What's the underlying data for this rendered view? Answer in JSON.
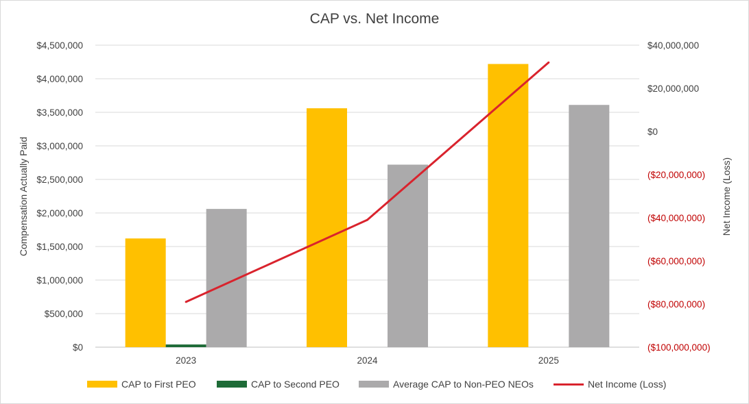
{
  "chart_data": {
    "type": "bar",
    "title": "CAP vs. Net Income",
    "categories": [
      "2023",
      "2024",
      "2025"
    ],
    "series": [
      {
        "name": "CAP to First PEO",
        "values": [
          1620000,
          3560000,
          4220000
        ],
        "color": "#FFC000",
        "axis": "left"
      },
      {
        "name": "CAP to Second PEO",
        "values": [
          40000,
          0,
          0
        ],
        "color": "#1E6B37",
        "axis": "left"
      },
      {
        "name": "Average CAP to Non-PEO NEOs",
        "values": [
          2060000,
          2720000,
          3610000
        ],
        "color": "#ABAAAB",
        "axis": "left"
      }
    ],
    "line_series": {
      "name": "Net Income (Loss)",
      "values": [
        -79000000,
        -41000000,
        32000000
      ],
      "color": "#D9232D",
      "axis": "right"
    },
    "ylabel": "Compensation Actually Paid",
    "y2label": "Net Income (Loss)",
    "ylim": [
      0,
      4500000
    ],
    "y2lim": [
      -100000000,
      40000000
    ],
    "yticks": [
      {
        "v": 0,
        "label": "$0"
      },
      {
        "v": 500000,
        "label": "$500,000"
      },
      {
        "v": 1000000,
        "label": "$1,000,000"
      },
      {
        "v": 1500000,
        "label": "$1,500,000"
      },
      {
        "v": 2000000,
        "label": "$2,000,000"
      },
      {
        "v": 2500000,
        "label": "$2,500,000"
      },
      {
        "v": 3000000,
        "label": "$3,000,000"
      },
      {
        "v": 3500000,
        "label": "$3,500,000"
      },
      {
        "v": 4000000,
        "label": "$4,000,000"
      },
      {
        "v": 4500000,
        "label": "$4,500,000"
      }
    ],
    "y2ticks": [
      {
        "v": 40000000,
        "label": "$40,000,000"
      },
      {
        "v": 20000000,
        "label": "$20,000,000"
      },
      {
        "v": 0,
        "label": "$0"
      },
      {
        "v": -20000000,
        "label": "($20,000,000)"
      },
      {
        "v": -40000000,
        "label": "($40,000,000)"
      },
      {
        "v": -60000000,
        "label": "($60,000,000)"
      },
      {
        "v": -80000000,
        "label": "($80,000,000)"
      },
      {
        "v": -100000000,
        "label": "($100,000,000)"
      }
    ],
    "grid": true,
    "legend_position": "bottom"
  }
}
